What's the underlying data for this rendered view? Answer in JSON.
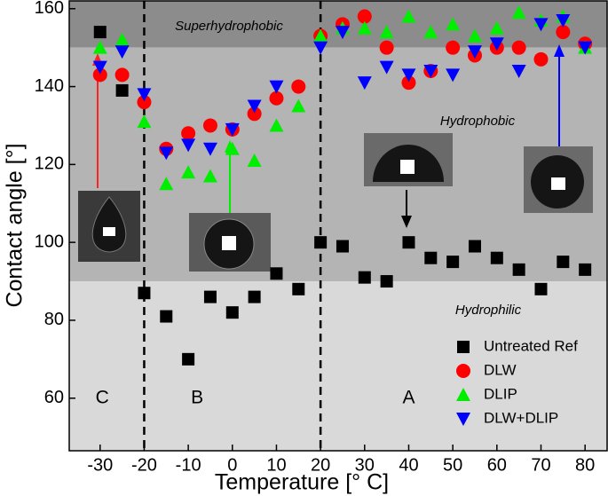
{
  "chart_data": {
    "type": "scatter",
    "xlabel": "Temperature [° C]",
    "ylabel": "Contact angle [°]",
    "xlim": [
      -37,
      85
    ],
    "ylim": [
      46.5,
      162
    ],
    "xticks": [
      -30,
      -20,
      -10,
      0,
      10,
      20,
      30,
      40,
      50,
      60,
      70,
      80
    ],
    "yticks": [
      60,
      80,
      100,
      120,
      140,
      160
    ],
    "regions": [
      {
        "label": "Superhydrophobic",
        "ymin": 150,
        "ymax": 162,
        "color": "#8c8c8c"
      },
      {
        "label": "Hydrophobic",
        "ymin": 90,
        "ymax": 150,
        "color": "#b4b4b4"
      },
      {
        "label": "Hydrophilic",
        "ymin": 46.5,
        "ymax": 90,
        "color": "#d9d9d9"
      }
    ],
    "vlines": [
      -20,
      20
    ],
    "zones": [
      "C",
      "B",
      "A"
    ],
    "legend": "lower right",
    "series": [
      {
        "name": "Untreated Ref",
        "color": "#000000",
        "marker": "square",
        "x": [
          -30,
          -25,
          -20,
          -15,
          -10,
          -5,
          0,
          5,
          10,
          15,
          20,
          25,
          30,
          35,
          40,
          45,
          50,
          55,
          60,
          65,
          70,
          75,
          80
        ],
        "values": [
          154,
          139,
          87,
          81,
          70,
          86,
          82,
          86,
          92,
          88,
          100,
          99,
          91,
          90,
          100,
          96,
          95,
          99,
          96,
          93,
          88,
          95,
          93
        ]
      },
      {
        "name": "DLW",
        "color": "#ff0000",
        "marker": "circle",
        "x": [
          -30,
          -25,
          -20,
          -15,
          -10,
          -5,
          0,
          5,
          10,
          15,
          20,
          25,
          30,
          35,
          40,
          45,
          50,
          55,
          60,
          65,
          70,
          75,
          80
        ],
        "values": [
          143,
          143,
          136,
          124,
          128,
          130,
          129,
          133,
          137,
          140,
          153,
          156,
          158,
          150,
          141,
          144,
          150,
          148,
          150,
          150,
          147,
          154,
          151
        ]
      },
      {
        "name": "DLIP",
        "color": "#00ee00",
        "marker": "triangle-up",
        "x": [
          -30,
          -25,
          -20,
          -15,
          -10,
          -5,
          0,
          5,
          10,
          15,
          20,
          25,
          30,
          35,
          40,
          45,
          50,
          55,
          60,
          65,
          70,
          75,
          80
        ],
        "values": [
          150,
          152,
          131,
          115,
          118,
          117,
          124,
          121,
          130,
          135,
          153,
          155,
          155,
          154,
          158,
          154,
          156,
          153,
          155,
          159,
          157,
          158,
          150
        ]
      },
      {
        "name": "DLW+DLIP",
        "color": "#0000ff",
        "marker": "triangle-down",
        "x": [
          -30,
          -25,
          -20,
          -15,
          -10,
          -5,
          0,
          5,
          10,
          20,
          25,
          30,
          35,
          40,
          45,
          50,
          55,
          60,
          65,
          70,
          75,
          80
        ],
        "values": [
          145,
          149,
          138,
          123,
          125,
          124,
          129,
          135,
          140,
          150,
          154,
          141,
          145,
          143,
          144,
          143,
          149,
          151,
          144,
          156,
          157,
          150
        ]
      }
    ]
  }
}
